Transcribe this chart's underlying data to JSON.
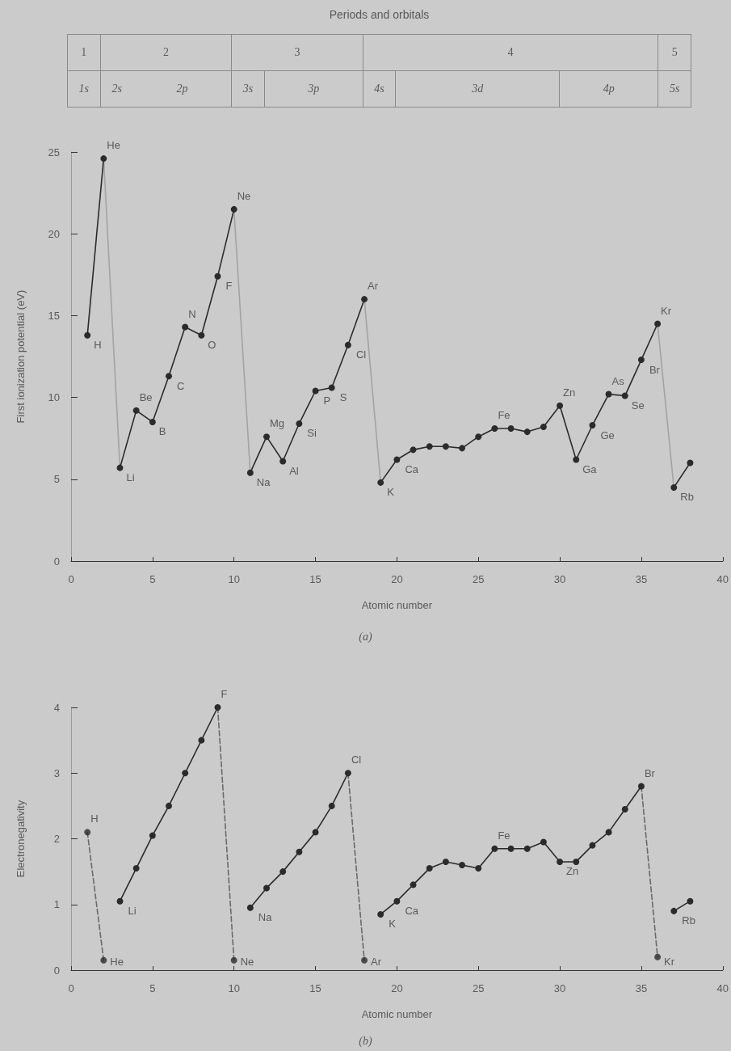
{
  "chart_data": [
    {
      "type": "other",
      "title": "Periods and orbitals",
      "annotations": [
        "1",
        "2",
        "3",
        "4",
        "5",
        "1s",
        "2s",
        "2p",
        "3s",
        "3p",
        "4s",
        "3d",
        "4p",
        "5s"
      ]
    },
    {
      "type": "line",
      "xlabel": "Atomic number",
      "ylabel": "First ionization potential (eV)",
      "xlim": [
        0,
        40
      ],
      "xticks": [
        0,
        5,
        10,
        15,
        20,
        25,
        30,
        35,
        40
      ],
      "ylim": [
        0,
        25
      ],
      "yticks": [
        0,
        5,
        10,
        15,
        20,
        25
      ],
      "marker": "circle",
      "line_style": "solid",
      "series": [
        {
          "color": "#2b2b2b",
          "x": [
            1,
            2
          ],
          "values": [
            13.8,
            24.6
          ]
        },
        {
          "color": "#2b2b2b",
          "x": [
            3,
            4,
            5,
            6,
            7,
            8,
            9,
            10
          ],
          "values": [
            5.7,
            9.2,
            8.5,
            11.3,
            14.3,
            13.8,
            17.4,
            21.5
          ]
        },
        {
          "color": "#2b2b2b",
          "x": [
            11,
            12,
            13,
            14,
            15,
            16,
            17,
            18
          ],
          "values": [
            5.4,
            7.6,
            6.1,
            8.4,
            10.4,
            10.6,
            13.2,
            16.0
          ]
        },
        {
          "color": "#2b2b2b",
          "x": [
            19,
            20,
            21,
            22,
            23,
            24,
            25,
            26,
            27,
            28,
            29,
            30,
            31,
            32,
            33,
            34,
            35,
            36
          ],
          "values": [
            4.8,
            6.2,
            6.8,
            7.0,
            7.0,
            6.9,
            7.6,
            8.1,
            8.1,
            7.9,
            8.2,
            9.5,
            6.2,
            8.3,
            10.2,
            10.1,
            12.3,
            14.5
          ]
        },
        {
          "color": "#2b2b2b",
          "x": [
            37,
            38
          ],
          "values": [
            4.5,
            6.0
          ]
        },
        {
          "color": "#a3a3a3",
          "marker": "none",
          "x": [
            2,
            3
          ],
          "values": [
            24.6,
            5.7
          ]
        },
        {
          "color": "#a3a3a3",
          "marker": "none",
          "x": [
            10,
            11
          ],
          "values": [
            21.5,
            5.4
          ]
        },
        {
          "color": "#a3a3a3",
          "marker": "none",
          "x": [
            18,
            19
          ],
          "values": [
            16.0,
            4.8
          ]
        },
        {
          "color": "#a3a3a3",
          "marker": "none",
          "x": [
            36,
            37
          ],
          "values": [
            14.5,
            4.5
          ]
        }
      ],
      "annotations": [
        {
          "text": "H",
          "x": 1,
          "y": 13.8
        },
        {
          "text": "He",
          "x": 2,
          "y": 24.6
        },
        {
          "text": "Li",
          "x": 3,
          "y": 5.7
        },
        {
          "text": "Be",
          "x": 4,
          "y": 9.2
        },
        {
          "text": "B",
          "x": 5,
          "y": 8.5
        },
        {
          "text": "C",
          "x": 6,
          "y": 11.3
        },
        {
          "text": "N",
          "x": 7,
          "y": 14.3
        },
        {
          "text": "O",
          "x": 8,
          "y": 13.8
        },
        {
          "text": "F",
          "x": 9,
          "y": 17.4
        },
        {
          "text": "Ne",
          "x": 10,
          "y": 21.5
        },
        {
          "text": "Na",
          "x": 11,
          "y": 5.4
        },
        {
          "text": "Mg",
          "x": 12,
          "y": 7.6
        },
        {
          "text": "Al",
          "x": 13,
          "y": 6.1
        },
        {
          "text": "Si",
          "x": 14,
          "y": 8.4
        },
        {
          "text": "P",
          "x": 15,
          "y": 10.4
        },
        {
          "text": "S",
          "x": 16,
          "y": 10.6
        },
        {
          "text": "Cl",
          "x": 17,
          "y": 13.2
        },
        {
          "text": "Ar",
          "x": 18,
          "y": 16.0
        },
        {
          "text": "K",
          "x": 19,
          "y": 4.8
        },
        {
          "text": "Ca",
          "x": 20,
          "y": 6.2
        },
        {
          "text": "Fe",
          "x": 26,
          "y": 8.1
        },
        {
          "text": "Zn",
          "x": 30,
          "y": 9.5
        },
        {
          "text": "Ga",
          "x": 31,
          "y": 6.2
        },
        {
          "text": "Ge",
          "x": 32,
          "y": 8.3
        },
        {
          "text": "As",
          "x": 33,
          "y": 10.2
        },
        {
          "text": "Se",
          "x": 34,
          "y": 10.1
        },
        {
          "text": "Br",
          "x": 35,
          "y": 12.3
        },
        {
          "text": "Kr",
          "x": 36,
          "y": 14.5
        },
        {
          "text": "Rb",
          "x": 37,
          "y": 4.5
        },
        "(a)"
      ]
    },
    {
      "type": "line",
      "xlabel": "Atomic number",
      "ylabel": "Electronegativity",
      "xlim": [
        0,
        40
      ],
      "xticks": [
        0,
        5,
        10,
        15,
        20,
        25,
        30,
        35,
        40
      ],
      "ylim": [
        0,
        4
      ],
      "yticks": [
        0,
        1,
        2,
        3,
        4
      ],
      "marker": "circle",
      "line_style": "solid",
      "series": [
        {
          "type": "scatter",
          "color": "#2b2b2b",
          "x": [
            1,
            2,
            10,
            18,
            36
          ],
          "values": [
            2.1,
            0.15,
            0.15,
            0.15,
            0.2
          ]
        },
        {
          "color": "#2b2b2b",
          "x": [
            3,
            4,
            5,
            6,
            7,
            8,
            9
          ],
          "values": [
            1.05,
            1.55,
            2.05,
            2.5,
            3.0,
            3.5,
            4.0
          ]
        },
        {
          "color": "#2b2b2b",
          "x": [
            11,
            12,
            13,
            14,
            15,
            16,
            17
          ],
          "values": [
            0.95,
            1.25,
            1.5,
            1.8,
            2.1,
            2.5,
            3.0
          ]
        },
        {
          "color": "#2b2b2b",
          "x": [
            19,
            20,
            21,
            22,
            23,
            24,
            25,
            26,
            27,
            28,
            29,
            30,
            31,
            32,
            33,
            34,
            35
          ],
          "values": [
            0.85,
            1.05,
            1.3,
            1.55,
            1.65,
            1.6,
            1.55,
            1.85,
            1.85,
            1.85,
            1.95,
            1.65,
            1.65,
            1.9,
            2.1,
            2.45,
            2.8
          ]
        },
        {
          "color": "#2b2b2b",
          "x": [
            37,
            38
          ],
          "values": [
            0.9,
            1.05
          ]
        },
        {
          "color": "#6a6a6a",
          "marker": "none",
          "line_style": "dashed",
          "x": [
            1,
            2
          ],
          "values": [
            2.1,
            0.15
          ]
        },
        {
          "color": "#6a6a6a",
          "marker": "none",
          "line_style": "dashed",
          "x": [
            9,
            10
          ],
          "values": [
            4.0,
            0.15
          ]
        },
        {
          "color": "#6a6a6a",
          "marker": "none",
          "line_style": "dashed",
          "x": [
            17,
            18
          ],
          "values": [
            3.0,
            0.15
          ]
        },
        {
          "color": "#6a6a6a",
          "marker": "none",
          "line_style": "dashed",
          "x": [
            35,
            36
          ],
          "values": [
            2.8,
            0.2
          ]
        }
      ],
      "annotations": [
        {
          "text": "H",
          "x": 1,
          "y": 2.1
        },
        {
          "text": "He",
          "x": 2,
          "y": 0.15
        },
        {
          "text": "Li",
          "x": 3,
          "y": 1.05
        },
        {
          "text": "F",
          "x": 9,
          "y": 4.0
        },
        {
          "text": "Ne",
          "x": 10,
          "y": 0.15
        },
        {
          "text": "Na",
          "x": 11,
          "y": 0.95
        },
        {
          "text": "Cl",
          "x": 17,
          "y": 3.0
        },
        {
          "text": "Ar",
          "x": 18,
          "y": 0.15
        },
        {
          "text": "K",
          "x": 19,
          "y": 0.85
        },
        {
          "text": "Ca",
          "x": 20,
          "y": 1.05
        },
        {
          "text": "Fe",
          "x": 26,
          "y": 1.85
        },
        {
          "text": "Zn",
          "x": 30,
          "y": 1.65
        },
        {
          "text": "Br",
          "x": 35,
          "y": 2.8
        },
        {
          "text": "Kr",
          "x": 36,
          "y": 0.2
        },
        {
          "text": "Rb",
          "x": 37,
          "y": 0.9
        },
        "(b)"
      ]
    }
  ]
}
